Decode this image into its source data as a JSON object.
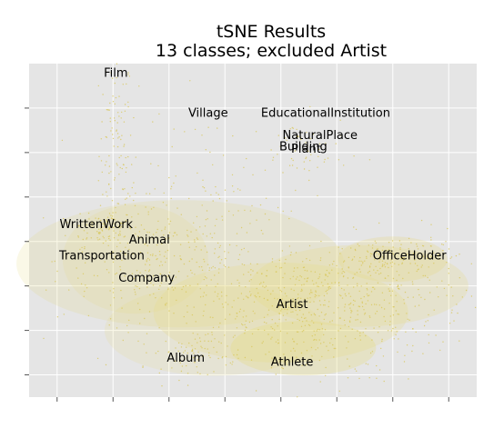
{
  "chart_data": {
    "type": "scatter",
    "title": "tSNE Results",
    "subtitle": "13 classes; excluded Artist",
    "xlabel": "",
    "ylabel": "",
    "grid": true,
    "colors": {
      "background": "#e5e5e5",
      "grid": "#ffffff",
      "points": "#d8c75a",
      "density": "#e6d97a",
      "highlight": "#e08a7a"
    },
    "class_labels": [
      {
        "text": "Film",
        "x": -9.5,
        "y": 47
      },
      {
        "text": "Village",
        "x": 7,
        "y": 38
      },
      {
        "text": "EducationalInstitution",
        "x": 28,
        "y": 38
      },
      {
        "text": "NaturalPlace",
        "x": 27,
        "y": 33
      },
      {
        "text": "Building",
        "x": 24,
        "y": 30.5
      },
      {
        "text": "Plant",
        "x": 24.5,
        "y": 30
      },
      {
        "text": "WrittenWork",
        "x": -13,
        "y": 13
      },
      {
        "text": "Animal",
        "x": -3.5,
        "y": 9.5
      },
      {
        "text": "Transportation",
        "x": -12,
        "y": 6
      },
      {
        "text": "Company",
        "x": -4,
        "y": 1
      },
      {
        "text": "OfficeHolder",
        "x": 43,
        "y": 6
      },
      {
        "text": "Artist",
        "x": 22,
        "y": -5
      },
      {
        "text": "Album",
        "x": 3,
        "y": -17
      },
      {
        "text": "Athlete",
        "x": 22,
        "y": -18
      }
    ],
    "xlim": [
      -25,
      55
    ],
    "ylim": [
      -25,
      50
    ],
    "xticks": [
      -20,
      -10,
      0,
      10,
      20,
      30,
      40,
      50
    ],
    "yticks": [
      -20,
      -10,
      0,
      10,
      20,
      30,
      40
    ]
  }
}
